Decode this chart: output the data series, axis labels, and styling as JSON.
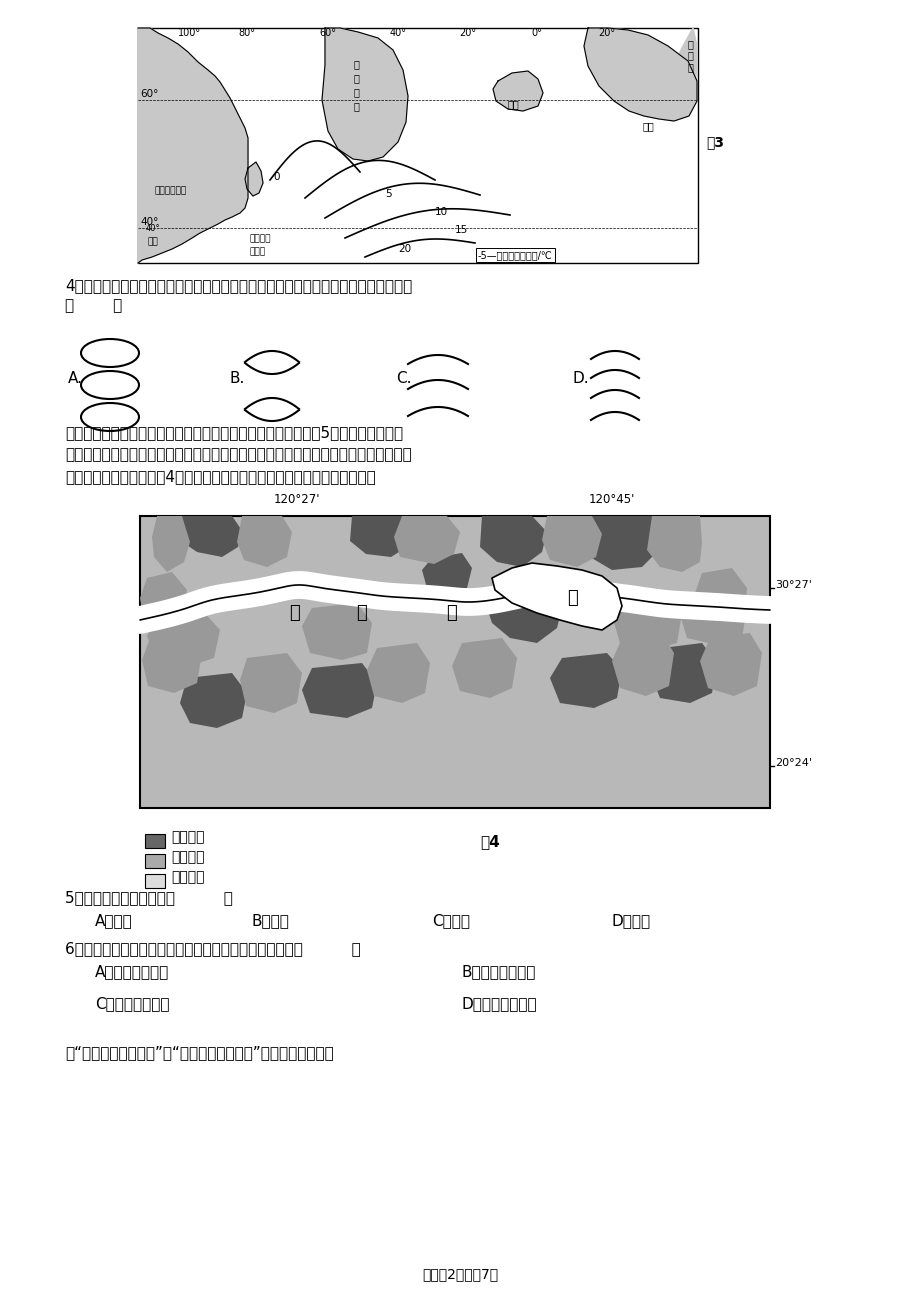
{
  "bg_color": "#ffffff",
  "fig3_caption": "图3",
  "question4_text": "4．纽芬兰岛附近曾经渔业资源丰富，与该渔场形成有关的等温线分布示意图正确的是",
  "question4_paren": "（        ）",
  "options_abcd": [
    "A.",
    "B.",
    "C.",
    "D."
  ],
  "para_line1": "湖北清江隔河岩水库是位于弃西南山区的一个峡谷型水库，水库5亿立方米的防洪库",
  "para_line2": "容，既可以削减清江下游洪峰，也可借开与长江洪峰的道遇，减少荆江分洪工程的使用",
  "para_line3": "权会和推退分洪时间。图4是该库区某种自然灾害易发性分布图，完成问题。",
  "fig4_coord_top_left": "120°27'",
  "fig4_coord_top_right": "120°45'",
  "fig4_coord_right_top": "30°27'",
  "fig4_coord_right_bottom": "20°24'",
  "fig4_caption": "图4",
  "legend_items": [
    [
      "高易发区",
      "#666666"
    ],
    [
      "中易发区",
      "#aaaaaa"
    ],
    [
      "低易发区",
      "#dddddd"
    ]
  ],
  "question5_text": "5．该自然灾害最可能是（          ）",
  "question5_options": [
    "A．滑坡",
    "B．地震",
    "C．寒潮",
    "D．台风"
  ],
  "question6_text": "6．绘制该图的现代技术是地理信息系统，该系统还可以（          ）",
  "question6_options_left": [
    "A．精确灾情定位",
    "C．计算受灾面积"
  ],
  "question6_options_right": [
    "B．获得瞬时火情",
    "D．汽车旅行导航"
  ],
  "final_text": "读“鲸背状雅丹地貌图”和“新月形沙丘地貌图”，完成下面小题。",
  "footer_text": "试卷第2页，总7页",
  "text_color": "#000000",
  "font_size_body": 11,
  "font_size_small": 9
}
